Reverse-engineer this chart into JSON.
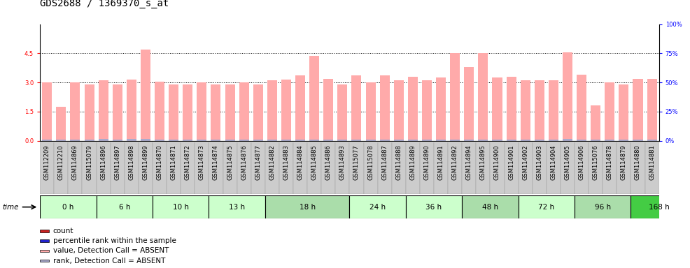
{
  "title": "GDS2688 / 1369370_s_at",
  "samples": [
    "GSM112209",
    "GSM112210",
    "GSM114869",
    "GSM115079",
    "GSM114896",
    "GSM114897",
    "GSM114898",
    "GSM114899",
    "GSM114870",
    "GSM114871",
    "GSM114872",
    "GSM114873",
    "GSM114874",
    "GSM114875",
    "GSM114876",
    "GSM114877",
    "GSM114882",
    "GSM114883",
    "GSM114884",
    "GSM114885",
    "GSM114886",
    "GSM114893",
    "GSM115077",
    "GSM115078",
    "GSM114887",
    "GSM114888",
    "GSM114889",
    "GSM114890",
    "GSM114891",
    "GSM114892",
    "GSM114894",
    "GSM114895",
    "GSM114900",
    "GSM114901",
    "GSM114902",
    "GSM114903",
    "GSM114904",
    "GSM114905",
    "GSM114906",
    "GSM115076",
    "GSM114878",
    "GSM114879",
    "GSM114880",
    "GSM114881"
  ],
  "values": [
    3.0,
    1.75,
    3.0,
    2.9,
    3.1,
    2.9,
    3.15,
    4.7,
    3.05,
    2.9,
    2.9,
    3.0,
    2.9,
    2.9,
    3.0,
    2.9,
    3.1,
    3.15,
    3.35,
    4.35,
    3.2,
    2.9,
    3.35,
    3.0,
    3.35,
    3.1,
    3.3,
    3.1,
    3.25,
    4.5,
    3.8,
    4.5,
    3.25,
    3.3,
    3.1,
    3.1,
    3.1,
    4.55,
    3.4,
    1.8,
    3.0,
    2.9,
    3.2,
    3.2
  ],
  "ranks": [
    0.05,
    0.07,
    0.05,
    0.06,
    0.09,
    0.06,
    0.1,
    0.08,
    0.06,
    0.05,
    0.05,
    0.06,
    0.06,
    0.07,
    0.07,
    0.05,
    0.06,
    0.07,
    0.06,
    0.07,
    0.07,
    0.06,
    0.07,
    0.07,
    0.07,
    0.07,
    0.07,
    0.07,
    0.06,
    0.07,
    0.07,
    0.07,
    0.07,
    0.07,
    0.07,
    0.06,
    0.07,
    0.08,
    0.07,
    0.06,
    0.06,
    0.06,
    0.06,
    0.06
  ],
  "time_groups": [
    {
      "label": "0 h",
      "count": 4,
      "color": "#ccffcc"
    },
    {
      "label": "6 h",
      "count": 4,
      "color": "#ccffcc"
    },
    {
      "label": "10 h",
      "count": 4,
      "color": "#ccffcc"
    },
    {
      "label": "13 h",
      "count": 4,
      "color": "#ccffcc"
    },
    {
      "label": "18 h",
      "count": 6,
      "color": "#aaddaa"
    },
    {
      "label": "24 h",
      "count": 4,
      "color": "#ccffcc"
    },
    {
      "label": "36 h",
      "count": 4,
      "color": "#ccffcc"
    },
    {
      "label": "48 h",
      "count": 4,
      "color": "#aaddaa"
    },
    {
      "label": "72 h",
      "count": 4,
      "color": "#ccffcc"
    },
    {
      "label": "96 h",
      "count": 4,
      "color": "#aaddaa"
    },
    {
      "label": "168 h",
      "count": 4,
      "color": "#44cc44"
    }
  ],
  "bar_color_pink": "#ffaaaa",
  "bar_color_blue": "#aaaacc",
  "ylim_left": [
    0,
    6
  ],
  "ylim_right": [
    0,
    100
  ],
  "yticks_left": [
    0,
    1.5,
    3.0,
    4.5
  ],
  "yticks_right": [
    0,
    25,
    50,
    75,
    100
  ],
  "title_fontsize": 10,
  "tick_fontsize": 6.0,
  "label_fontsize": 7.5
}
